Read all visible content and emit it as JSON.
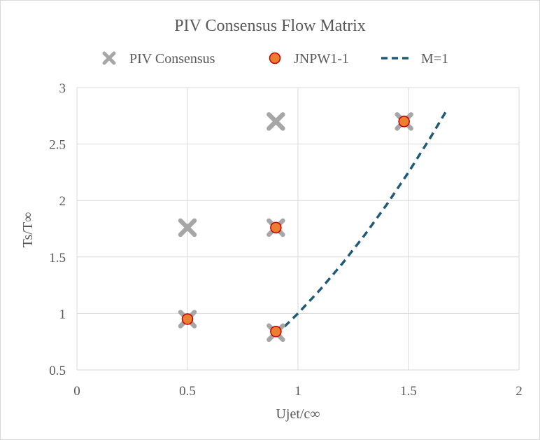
{
  "chart_data": {
    "type": "scatter",
    "title": "PIV Consensus Flow Matrix",
    "xlabel": "Ujet/c∞",
    "ylabel": "Ts/T∞",
    "xlim": [
      0,
      2
    ],
    "ylim": [
      0.5,
      3
    ],
    "x_ticks": [
      0,
      0.5,
      1,
      1.5,
      2
    ],
    "y_ticks": [
      0.5,
      1,
      1.5,
      2,
      2.5,
      3
    ],
    "x_tick_labels": [
      "0",
      "0.5",
      "1",
      "1.5",
      "2"
    ],
    "y_tick_labels": [
      "0.5",
      "1",
      "1.5",
      "2",
      "2.5",
      "3"
    ],
    "grid": true,
    "legend_position": "top",
    "series": [
      {
        "name": "PIV Consensus",
        "marker": "x",
        "color": "#a6a6a6",
        "points": [
          {
            "x": 0.5,
            "y": 0.95
          },
          {
            "x": 0.5,
            "y": 1.76
          },
          {
            "x": 0.9,
            "y": 0.83
          },
          {
            "x": 0.9,
            "y": 1.76
          },
          {
            "x": 0.9,
            "y": 2.7
          },
          {
            "x": 1.48,
            "y": 2.7
          }
        ]
      },
      {
        "name": "JNPW1-1",
        "marker": "circle",
        "color": "#ed7d31",
        "edge_color": "#c00000",
        "points": [
          {
            "x": 0.5,
            "y": 0.95
          },
          {
            "x": 0.9,
            "y": 0.84
          },
          {
            "x": 0.9,
            "y": 1.76
          },
          {
            "x": 1.48,
            "y": 2.7
          }
        ]
      },
      {
        "name": "M=1",
        "marker": "dashed-line",
        "color": "#1f5b78",
        "points": [
          {
            "x": 0.9,
            "y": 0.81
          },
          {
            "x": 1.0,
            "y": 1.0
          },
          {
            "x": 1.1,
            "y": 1.21
          },
          {
            "x": 1.2,
            "y": 1.44
          },
          {
            "x": 1.3,
            "y": 1.69
          },
          {
            "x": 1.4,
            "y": 1.96
          },
          {
            "x": 1.5,
            "y": 2.25
          },
          {
            "x": 1.6,
            "y": 2.56
          },
          {
            "x": 1.67,
            "y": 2.79
          }
        ]
      }
    ]
  }
}
